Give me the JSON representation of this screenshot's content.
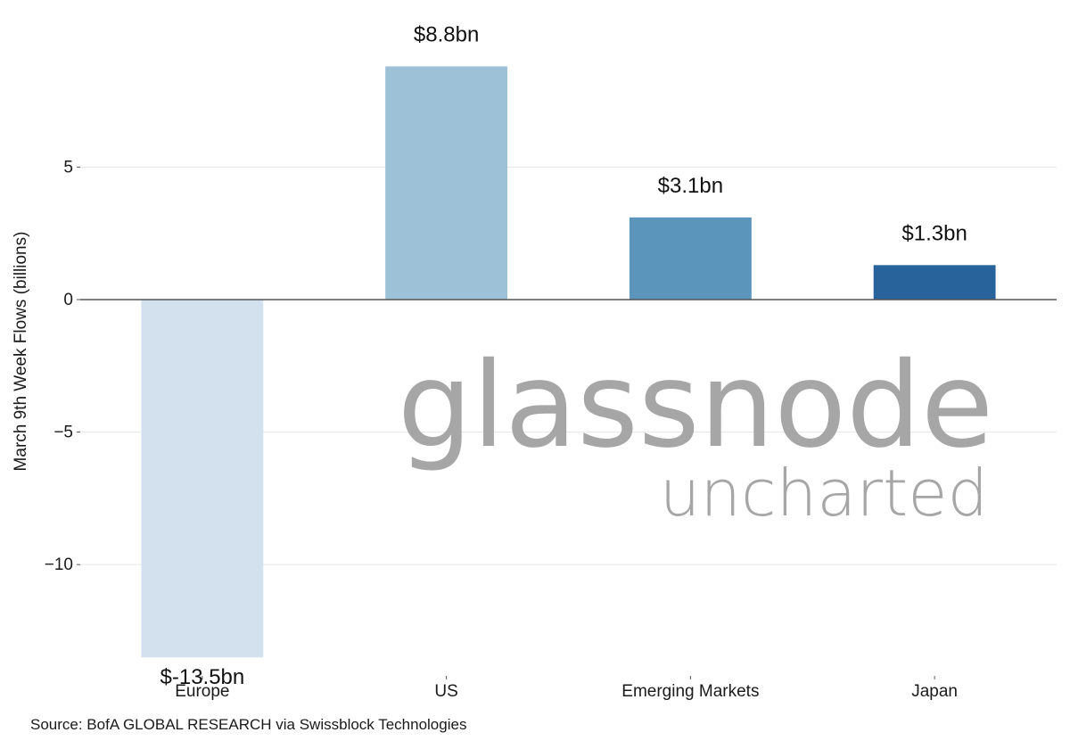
{
  "chart_data": {
    "type": "bar",
    "categories": [
      "Europe",
      "US",
      "Emerging Markets",
      "Japan"
    ],
    "values": [
      -13.5,
      8.8,
      3.1,
      1.3
    ],
    "data_labels": [
      "$-13.5bn",
      "$8.8bn",
      "$3.1bn",
      "$1.3bn"
    ],
    "colors": [
      "#d3e1ee",
      "#9dc1d6",
      "#5b95bb",
      "#28649b"
    ],
    "ylabel": "March 9th Week Flows (billions)",
    "ylim": [
      -14.2,
      10.8
    ],
    "yticks": [
      5,
      0,
      -5,
      -10
    ],
    "ytick_labels": [
      "5",
      "0",
      "−5",
      "−10"
    ],
    "grid": true
  },
  "watermark": {
    "line1": "glassnode",
    "line2": "uncharted"
  },
  "source": "Source: BofA GLOBAL RESEARCH via Swissblock Technologies"
}
